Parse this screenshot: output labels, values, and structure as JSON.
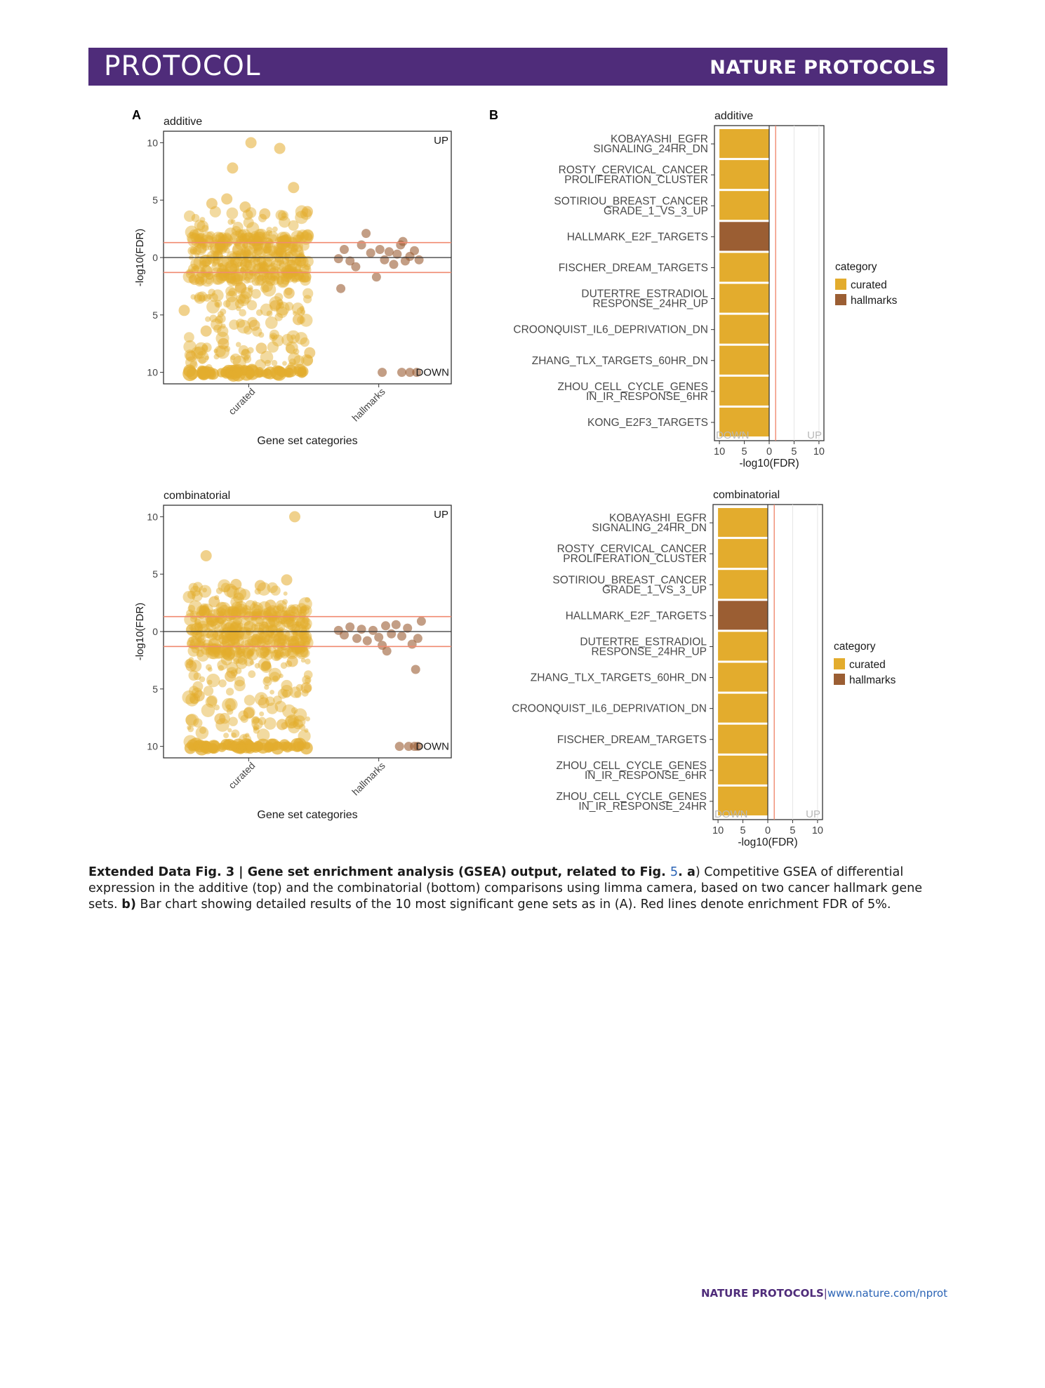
{
  "header": {
    "section": "PROTOCOL",
    "journal": "NATURE PROTOCOLS"
  },
  "panel_letters": {
    "a": "A",
    "b": "B"
  },
  "footer": {
    "journal": "NATURE PROTOCOLS",
    "separator": "|",
    "url": "www.nature.com/nprot"
  },
  "caption": {
    "label": "Extended Data Fig. 3 | Gene set enrichment analysis (GSEA) output, related to Fig. ",
    "fig_ref": "5",
    "label_end": ". ",
    "a_label": "a",
    "a_text": ") Competitive GSEA of differential expression in the additive (top) and the combinatorial (bottom) comparisons using limma camera, based on two cancer hallmark gene sets. ",
    "b_label": "b)",
    "b_text": " Bar chart showing detailed results of the 10 most significant gene sets as in (A). Red lines denote enrichment FDR of 5%."
  },
  "colors": {
    "curated": "#e3ac2d",
    "hallmarks": "#9b5e33",
    "threshold": "#f08a70",
    "header": "#4f2c7a"
  },
  "chart_data": [
    {
      "id": "scatter-additive",
      "type": "scatter",
      "title": "additive",
      "xlabel": "Gene set categories",
      "ylabel": "-log10(FDR)",
      "categories": [
        "curated",
        "hallmarks"
      ],
      "y_ticks": [
        10,
        5,
        0,
        5,
        10
      ],
      "ylim": [
        -11,
        11
      ],
      "threshold": 1.3,
      "up_label": "UP",
      "down_label": "DOWN",
      "series": [
        {
          "name": "curated",
          "points": [
            [
              0.76,
              10
            ],
            [
              1.01,
              9.5
            ],
            [
              0.6,
              7.8
            ],
            [
              1.13,
              6.1
            ],
            [
              0.55,
              5.1
            ],
            [
              1.25,
              4.0
            ],
            [
              0.71,
              4.4
            ],
            [
              0.42,
              4.7
            ],
            [
              0.88,
              3.8
            ],
            [
              0.27,
              -1.9
            ],
            [
              0.67,
              -2.6
            ],
            [
              1.09,
              -3.1
            ],
            [
              0.18,
              -4.6
            ],
            [
              0.79,
              -5.9
            ],
            [
              0.97,
              -4.2
            ],
            [
              0.37,
              -6.4
            ],
            [
              1.17,
              -5.4
            ],
            [
              0.52,
              -7.5
            ],
            [
              1.27,
              -8.3
            ],
            [
              0.24,
              -8.6
            ],
            [
              0.85,
              -7.9
            ]
          ]
        },
        {
          "name": "hallmarks",
          "points": [
            [
              1.52,
              -0.1
            ],
            [
              1.57,
              0.7
            ],
            [
              1.62,
              -0.3
            ],
            [
              1.67,
              -0.8
            ],
            [
              1.72,
              1.1
            ],
            [
              1.76,
              2.1
            ],
            [
              1.8,
              0.4
            ],
            [
              1.85,
              -1.7
            ],
            [
              1.88,
              0.7
            ],
            [
              1.92,
              -0.2
            ],
            [
              1.96,
              0.5
            ],
            [
              2.0,
              -0.6
            ],
            [
              2.03,
              0.3
            ],
            [
              2.06,
              1.1
            ],
            [
              2.1,
              -0.3
            ],
            [
              2.14,
              0.1
            ],
            [
              2.18,
              0.6
            ],
            [
              2.22,
              -0.2
            ],
            [
              1.54,
              -2.7
            ],
            [
              2.08,
              1.4
            ],
            [
              1.9,
              -10
            ],
            [
              2.07,
              -10
            ],
            [
              2.14,
              -10
            ],
            [
              2.2,
              -10
            ]
          ]
        }
      ]
    },
    {
      "id": "bar-additive",
      "type": "bar",
      "title": "additive",
      "xlabel": "-log10(FDR)",
      "x_ticks": [
        10,
        5,
        0,
        5,
        10
      ],
      "xlim": [
        -11,
        11
      ],
      "threshold": 1.3,
      "up_label": "UP",
      "down_label": "DOWN",
      "legend_title": "category",
      "legend": [
        "curated",
        "hallmarks"
      ],
      "bars": [
        {
          "label": [
            "KOBAYASHI_EGFR",
            "SIGNALING_24HR_DN"
          ],
          "category": "curated",
          "value": -10
        },
        {
          "label": [
            "ROSTY_CERVICAL_CANCER",
            "PROLIFERATION_CLUSTER"
          ],
          "category": "curated",
          "value": -10
        },
        {
          "label": [
            "SOTIRIOU_BREAST_CANCER",
            "GRADE_1_VS_3_UP"
          ],
          "category": "curated",
          "value": -10
        },
        {
          "label": [
            "HALLMARK_E2F_TARGETS"
          ],
          "category": "hallmarks",
          "value": -10
        },
        {
          "label": [
            "FISCHER_DREAM_TARGETS"
          ],
          "category": "curated",
          "value": -10
        },
        {
          "label": [
            "DUTERTRE_ESTRADIOL",
            "RESPONSE_24HR_UP"
          ],
          "category": "curated",
          "value": -10
        },
        {
          "label": [
            "CROONQUIST_IL6_DEPRIVATION_DN"
          ],
          "category": "curated",
          "value": -10
        },
        {
          "label": [
            "ZHANG_TLX_TARGETS_60HR_DN"
          ],
          "category": "curated",
          "value": -10
        },
        {
          "label": [
            "ZHOU_CELL_CYCLE_GENES",
            "IN_IR_RESPONSE_6HR"
          ],
          "category": "curated",
          "value": -10
        },
        {
          "label": [
            "KONG_E2F3_TARGETS"
          ],
          "category": "curated",
          "value": -10
        }
      ]
    },
    {
      "id": "scatter-combinatorial",
      "type": "scatter",
      "title": "combinatorial",
      "xlabel": "Gene set categories",
      "ylabel": "-log10(FDR)",
      "categories": [
        "curated",
        "hallmarks"
      ],
      "y_ticks": [
        10,
        5,
        0,
        5,
        10
      ],
      "ylim": [
        -11,
        11
      ],
      "threshold": 1.3,
      "up_label": "UP",
      "down_label": "DOWN",
      "series": [
        {
          "name": "curated",
          "points": [
            [
              1.14,
              10
            ],
            [
              0.37,
              6.6
            ],
            [
              0.63,
              4.1
            ],
            [
              1.07,
              4.5
            ],
            [
              0.84,
              4.0
            ],
            [
              0.44,
              2.6
            ],
            [
              0.93,
              2.3
            ],
            [
              0.24,
              -3.0
            ],
            [
              0.58,
              -3.9
            ],
            [
              1.12,
              -2.6
            ],
            [
              0.31,
              -5.6
            ],
            [
              0.87,
              -6.2
            ],
            [
              1.24,
              -4.9
            ],
            [
              0.49,
              -7.6
            ],
            [
              1.03,
              -8.1
            ],
            [
              0.74,
              -7.1
            ]
          ]
        },
        {
          "name": "hallmarks",
          "points": [
            [
              1.52,
              0.1
            ],
            [
              1.57,
              -0.3
            ],
            [
              1.62,
              0.4
            ],
            [
              1.68,
              -0.6
            ],
            [
              1.72,
              0.2
            ],
            [
              1.77,
              -0.8
            ],
            [
              1.82,
              0.1
            ],
            [
              1.87,
              -0.5
            ],
            [
              1.9,
              -1.2
            ],
            [
              1.93,
              0.5
            ],
            [
              1.98,
              -0.2
            ],
            [
              2.02,
              0.6
            ],
            [
              2.07,
              -0.4
            ],
            [
              2.12,
              0.3
            ],
            [
              2.16,
              -1.1
            ],
            [
              2.21,
              -0.6
            ],
            [
              2.24,
              0.9
            ],
            [
              2.19,
              -3.3
            ],
            [
              1.94,
              -1.7
            ],
            [
              2.05,
              -10
            ],
            [
              2.13,
              -10
            ],
            [
              2.18,
              -10
            ],
            [
              2.21,
              -10
            ]
          ]
        }
      ]
    },
    {
      "id": "bar-combinatorial",
      "type": "bar",
      "title": "combinatorial",
      "xlabel": "-log10(FDR)",
      "x_ticks": [
        10,
        5,
        0,
        5,
        10
      ],
      "xlim": [
        -11,
        11
      ],
      "threshold": 1.3,
      "up_label": "UP",
      "down_label": "DOWN",
      "legend_title": "category",
      "legend": [
        "curated",
        "hallmarks"
      ],
      "bars": [
        {
          "label": [
            "KOBAYASHI_EGFR",
            "SIGNALING_24HR_DN"
          ],
          "category": "curated",
          "value": -10
        },
        {
          "label": [
            "ROSTY_CERVICAL_CANCER",
            "PROLIFERATION_CLUSTER"
          ],
          "category": "curated",
          "value": -10
        },
        {
          "label": [
            "SOTIRIOU_BREAST_CANCER",
            "GRADE_1_VS_3_UP"
          ],
          "category": "curated",
          "value": -10
        },
        {
          "label": [
            "HALLMARK_E2F_TARGETS"
          ],
          "category": "hallmarks",
          "value": -10
        },
        {
          "label": [
            "DUTERTRE_ESTRADIOL",
            "RESPONSE_24HR_UP"
          ],
          "category": "curated",
          "value": -10
        },
        {
          "label": [
            "ZHANG_TLX_TARGETS_60HR_DN"
          ],
          "category": "curated",
          "value": -10
        },
        {
          "label": [
            "CROONQUIST_IL6_DEPRIVATION_DN"
          ],
          "category": "curated",
          "value": -10
        },
        {
          "label": [
            "FISCHER_DREAM_TARGETS"
          ],
          "category": "curated",
          "value": -10
        },
        {
          "label": [
            "ZHOU_CELL_CYCLE_GENES",
            "IN_IR_RESPONSE_6HR"
          ],
          "category": "curated",
          "value": -10
        },
        {
          "label": [
            "ZHOU_CELL_CYCLE_GENES",
            "IN_IR_RESPONSE_24HR"
          ],
          "category": "curated",
          "value": -10
        }
      ]
    }
  ]
}
